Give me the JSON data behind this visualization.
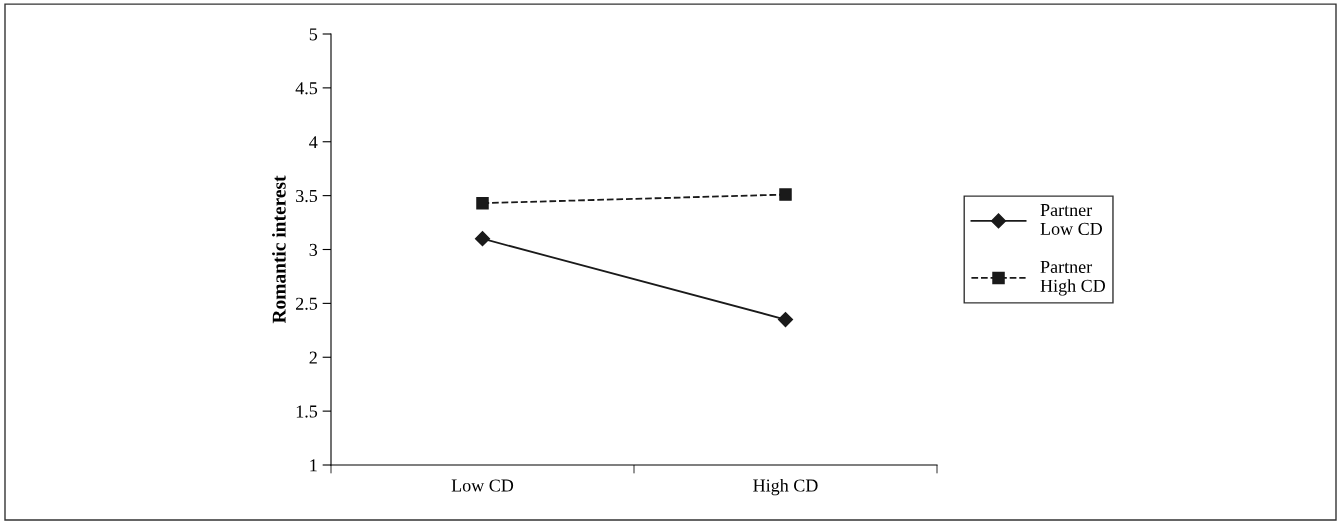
{
  "chart_data": {
    "type": "line",
    "ylabel": "Romantic interest",
    "categories": [
      "Low CD",
      "High CD"
    ],
    "series": [
      {
        "name": "Partner\nLow CD",
        "color": "#1a1a1a",
        "values": [
          3.1,
          2.35
        ],
        "marker": "diamond",
        "line_style": "solid"
      },
      {
        "name": "Partner\nHigh CD",
        "color": "#1a1a1a",
        "values": [
          3.43,
          3.51
        ],
        "marker": "square",
        "line_style": "dashed"
      }
    ],
    "ylim": [
      1,
      5
    ],
    "yticks": [
      1,
      1.5,
      2,
      2.5,
      3,
      3.5,
      4,
      4.5,
      5
    ],
    "grid": false,
    "legend": "right"
  }
}
